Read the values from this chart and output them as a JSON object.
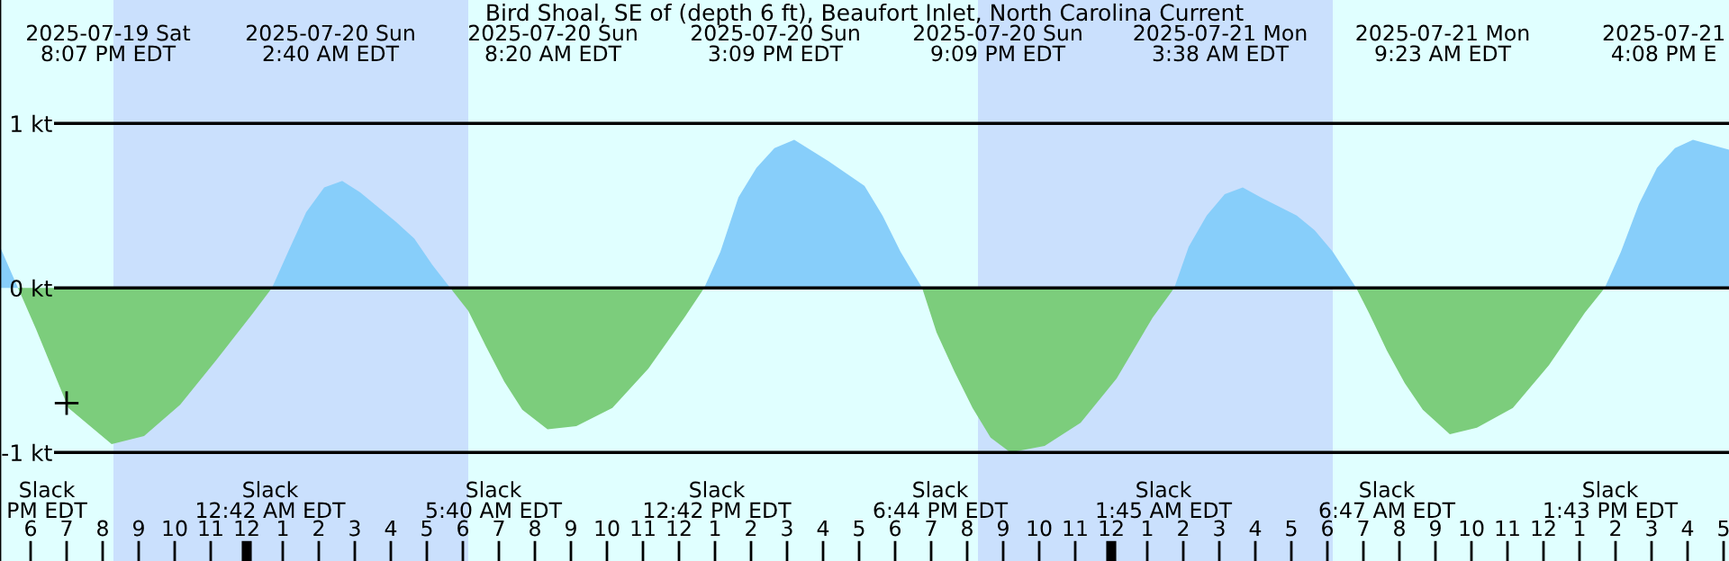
{
  "chart_data": {
    "type": "area",
    "title": "Bird Shoal, SE of (depth 6 ft), Beaufort Inlet, North Carolina Current",
    "series": [
      {
        "color": "#87cefa",
        "x": [
          "2025-07-19T17:09",
          "2025-07-19T17:39",
          "2025-07-20T00:42",
          "2025-07-20T01:09",
          "2025-07-20T01:39",
          "2025-07-20T02:09",
          "2025-07-20T02:39",
          "2025-07-20T03:09",
          "2025-07-20T03:39",
          "2025-07-20T04:09",
          "2025-07-20T04:39",
          "2025-07-20T05:09",
          "2025-07-20T05:39",
          "2025-07-20T12:42",
          "2025-07-20T13:09",
          "2025-07-20T13:39",
          "2025-07-20T14:09",
          "2025-07-20T14:39",
          "2025-07-20T15:12",
          "2025-07-20T16:09",
          "2025-07-20T17:09",
          "2025-07-20T17:39",
          "2025-07-20T18:09",
          "2025-07-20T18:45",
          "2025-07-21T01:45",
          "2025-07-21T02:09",
          "2025-07-21T02:39",
          "2025-07-21T03:09",
          "2025-07-21T03:39",
          "2025-07-21T04:09",
          "2025-07-21T05:09",
          "2025-07-21T05:39",
          "2025-07-21T06:09",
          "2025-07-21T06:48",
          "2025-07-21T13:42",
          "2025-07-21T14:09",
          "2025-07-21T14:39",
          "2025-07-21T15:09",
          "2025-07-21T15:39",
          "2025-07-21T16:09",
          "2025-07-21T16:39",
          "2025-07-21T17:09"
        ],
        "values": [
          0.25,
          0,
          0,
          0.22,
          0.46,
          0.61,
          0.65,
          0.58,
          0.49,
          0.4,
          0.3,
          0.14,
          0,
          0,
          0.22,
          0.55,
          0.73,
          0.85,
          0.9,
          0.77,
          0.62,
          0.44,
          0.22,
          0,
          0,
          0.25,
          0.44,
          0.57,
          0.61,
          0.55,
          0.44,
          0.35,
          0.22,
          0,
          0,
          0.22,
          0.51,
          0.73,
          0.85,
          0.9,
          0.87,
          0.84
        ]
      },
      {
        "color": "#7ccd7c",
        "x": [
          "2025-07-19T17:39",
          "2025-07-19T18:09",
          "2025-07-19T19:03",
          "2025-07-19T20:15",
          "2025-07-19T21:09",
          "2025-07-19T22:09",
          "2025-07-19T23:09",
          "2025-07-20T00:09",
          "2025-07-20T00:42",
          "2025-07-20T05:39",
          "2025-07-20T06:09",
          "2025-07-20T06:39",
          "2025-07-20T07:09",
          "2025-07-20T07:39",
          "2025-07-20T08:21",
          "2025-07-20T09:09",
          "2025-07-20T10:09",
          "2025-07-20T11:09",
          "2025-07-20T12:09",
          "2025-07-20T12:42",
          "2025-07-20T18:45",
          "2025-07-20T19:09",
          "2025-07-20T19:39",
          "2025-07-20T20:09",
          "2025-07-20T20:39",
          "2025-07-20T21:12",
          "2025-07-20T22:09",
          "2025-07-20T23:09",
          "2025-07-21T00:09",
          "2025-07-21T01:09",
          "2025-07-21T01:45",
          "2025-07-21T06:48",
          "2025-07-21T07:09",
          "2025-07-21T07:39",
          "2025-07-21T08:09",
          "2025-07-21T08:39",
          "2025-07-21T09:24",
          "2025-07-21T10:09",
          "2025-07-21T11:09",
          "2025-07-21T12:09",
          "2025-07-21T13:09",
          "2025-07-21T13:42"
        ],
        "values": [
          0,
          -0.25,
          -0.73,
          -0.95,
          -0.9,
          -0.71,
          -0.44,
          -0.16,
          0,
          0,
          -0.14,
          -0.36,
          -0.57,
          -0.74,
          -0.86,
          -0.84,
          -0.73,
          -0.49,
          -0.18,
          0,
          0,
          -0.27,
          -0.51,
          -0.73,
          -0.91,
          -1.0,
          -0.96,
          -0.82,
          -0.55,
          -0.18,
          0,
          0,
          -0.15,
          -0.38,
          -0.58,
          -0.74,
          -0.89,
          -0.85,
          -0.73,
          -0.47,
          -0.15,
          0
        ]
      },
      {
        "type": "scatter",
        "color": "#000000",
        "marker": "cross",
        "x": [
          "2025-07-19T19:00"
        ],
        "values": [
          -0.7
        ]
      }
    ],
    "xlim": [
      "2025-07-19T17:09",
      "2025-07-21T17:09"
    ],
    "ylim": [
      -1.66,
      1.75
    ],
    "xticks": [
      {
        "value": "2025-07-19T18:00",
        "label": "6"
      },
      {
        "value": "2025-07-19T19:00",
        "label": "7"
      },
      {
        "value": "2025-07-19T20:00",
        "label": "8"
      },
      {
        "value": "2025-07-19T21:00",
        "label": "9"
      },
      {
        "value": "2025-07-19T22:00",
        "label": "10"
      },
      {
        "value": "2025-07-19T23:00",
        "label": "11"
      },
      {
        "value": "2025-07-20T00:00",
        "label": "12"
      },
      {
        "value": "2025-07-20T01:00",
        "label": "1"
      },
      {
        "value": "2025-07-20T02:00",
        "label": "2"
      },
      {
        "value": "2025-07-20T03:00",
        "label": "3"
      },
      {
        "value": "2025-07-20T04:00",
        "label": "4"
      },
      {
        "value": "2025-07-20T05:00",
        "label": "5"
      },
      {
        "value": "2025-07-20T06:00",
        "label": "6"
      },
      {
        "value": "2025-07-20T07:00",
        "label": "7"
      },
      {
        "value": "2025-07-20T08:00",
        "label": "8"
      },
      {
        "value": "2025-07-20T09:00",
        "label": "9"
      },
      {
        "value": "2025-07-20T10:00",
        "label": "10"
      },
      {
        "value": "2025-07-20T11:00",
        "label": "11"
      },
      {
        "value": "2025-07-20T12:00",
        "label": "12"
      },
      {
        "value": "2025-07-20T13:00",
        "label": "1"
      },
      {
        "value": "2025-07-20T14:00",
        "label": "2"
      },
      {
        "value": "2025-07-20T15:00",
        "label": "3"
      },
      {
        "value": "2025-07-20T16:00",
        "label": "4"
      },
      {
        "value": "2025-07-20T17:00",
        "label": "5"
      },
      {
        "value": "2025-07-20T18:00",
        "label": "6"
      },
      {
        "value": "2025-07-20T19:00",
        "label": "7"
      },
      {
        "value": "2025-07-20T20:00",
        "label": "8"
      },
      {
        "value": "2025-07-20T21:00",
        "label": "9"
      },
      {
        "value": "2025-07-20T22:00",
        "label": "10"
      },
      {
        "value": "2025-07-20T23:00",
        "label": "11"
      },
      {
        "value": "2025-07-21T00:00",
        "label": "12"
      },
      {
        "value": "2025-07-21T01:00",
        "label": "1"
      },
      {
        "value": "2025-07-21T02:00",
        "label": "2"
      },
      {
        "value": "2025-07-21T03:00",
        "label": "3"
      },
      {
        "value": "2025-07-21T04:00",
        "label": "4"
      },
      {
        "value": "2025-07-21T05:00",
        "label": "5"
      },
      {
        "value": "2025-07-21T06:00",
        "label": "6"
      },
      {
        "value": "2025-07-21T07:00",
        "label": "7"
      },
      {
        "value": "2025-07-21T08:00",
        "label": "8"
      },
      {
        "value": "2025-07-21T09:00",
        "label": "9"
      },
      {
        "value": "2025-07-21T10:00",
        "label": "10"
      },
      {
        "value": "2025-07-21T11:00",
        "label": "11"
      },
      {
        "value": "2025-07-21T12:00",
        "label": "12"
      },
      {
        "value": "2025-07-21T13:00",
        "label": "1"
      },
      {
        "value": "2025-07-21T14:00",
        "label": "2"
      },
      {
        "value": "2025-07-21T15:00",
        "label": "3"
      },
      {
        "value": "2025-07-21T16:00",
        "label": "4"
      },
      {
        "value": "2025-07-21T17:00",
        "label": "5"
      }
    ],
    "yticks": [
      {
        "value": 1,
        "label": "1 kt"
      },
      {
        "value": 0,
        "label": "0 kt"
      },
      {
        "value": -1,
        "label": "-1 kt"
      }
    ],
    "grid": "y",
    "bands": [
      {
        "axis": "x",
        "from": "2025-07-19T17:09",
        "to": "2025-07-19T20:18",
        "color": "#e0ffff"
      },
      {
        "axis": "x",
        "from": "2025-07-19T20:18",
        "to": "2025-07-20T06:09",
        "color": "#cae0fd"
      },
      {
        "axis": "x",
        "from": "2025-07-20T06:09",
        "to": "2025-07-20T20:18",
        "color": "#e0ffff"
      },
      {
        "axis": "x",
        "from": "2025-07-20T20:18",
        "to": "2025-07-21T06:09",
        "color": "#cae0fd"
      },
      {
        "axis": "x",
        "from": "2025-07-21T06:09",
        "to": "2025-07-21T17:09",
        "color": "#e0ffff"
      }
    ],
    "annotations": [
      "2025-07-19 Sat\n8:07 PM EDT",
      "2025-07-20 Sun\n2:40 AM EDT",
      "2025-07-20 Sun\n8:20 AM EDT",
      "2025-07-20 Sun\n3:09 PM EDT",
      "2025-07-20 Sun\n9:09 PM EDT",
      "2025-07-21 Mon\n3:38 AM EDT",
      "2025-07-21 Mon\n9:23 AM EDT",
      "2025-07-21\n4:08 PM E",
      "Slack\nPM EDT",
      "Slack\n12:42 AM EDT",
      "Slack\n5:40 AM EDT",
      "Slack\n12:42 PM EDT",
      "Slack\n6:44 PM EDT",
      "Slack\n1:45 AM EDT",
      "Slack\n6:47 AM EDT",
      "Slack\n1:43 PM EDT"
    ]
  }
}
